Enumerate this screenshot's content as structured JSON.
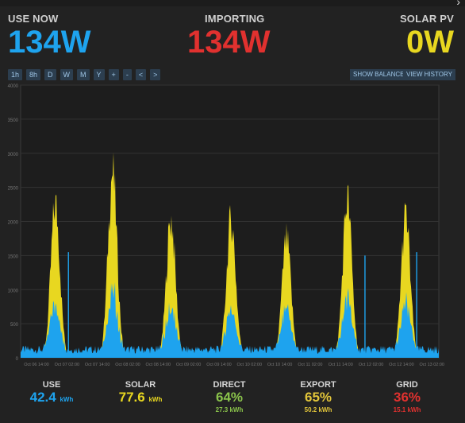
{
  "header": {
    "use_now": {
      "label": "USE NOW",
      "value": "134W"
    },
    "importing": {
      "label": "IMPORTING",
      "value": "134W"
    },
    "solar_pv": {
      "label": "SOLAR PV",
      "value": "0W"
    }
  },
  "corner_icon": "chevron-right-icon",
  "toolbar": {
    "buttons": [
      "1h",
      "8h",
      "D",
      "W",
      "M",
      "Y",
      "+",
      "-",
      "<",
      ">"
    ],
    "show_balance": "SHOW BALANCE",
    "view_history": "VIEW HISTORY"
  },
  "colors": {
    "use": "#1ea3ee",
    "solar": "#e8d720",
    "importing": "#e1312f",
    "direct": "#8ac34b",
    "export": "#e3c63a",
    "background": "#222222"
  },
  "chart_data": {
    "type": "area",
    "ylim": [
      0,
      4000
    ],
    "yticks": [
      "0",
      "500",
      "1000",
      "1500",
      "2000",
      "2500",
      "3000",
      "3500",
      "4000"
    ],
    "xticks": [
      "Oct 06 14:00",
      "Oct 07 02:00",
      "Oct 07 14:00",
      "Oct 08 02:00",
      "Oct 08 14:00",
      "Oct 09 02:00",
      "Oct 09 14:00",
      "Oct 10 02:00",
      "Oct 10 14:00",
      "Oct 11 02:00",
      "Oct 11 14:00",
      "Oct 12 02:00",
      "Oct 12 14:00",
      "Oct 13 02:00"
    ],
    "grid": true,
    "series": [
      {
        "color": "#e8d720",
        "peaks": [
          {
            "center": 0.62,
            "value": 2600
          },
          {
            "center": 2.5,
            "value": 3150
          },
          {
            "center": 4.42,
            "value": 2350
          },
          {
            "center": 6.4,
            "value": 2350
          },
          {
            "center": 8.22,
            "value": 2000
          },
          {
            "center": 10.22,
            "value": 2700
          },
          {
            "center": 12.14,
            "value": 2400
          }
        ]
      },
      {
        "color": "#1ea3ee",
        "spikes": [
          {
            "x": 1.05,
            "value": 1550
          },
          {
            "x": 10.8,
            "value": 1500
          },
          {
            "x": 12.5,
            "value": 1550
          }
        ]
      }
    ]
  },
  "footer": {
    "use": {
      "label": "USE",
      "value": "42.4",
      "unit": "kWh"
    },
    "solar": {
      "label": "SOLAR",
      "value": "77.6",
      "unit": "kWh"
    },
    "direct": {
      "label": "DIRECT",
      "value": "64%",
      "sub": "27.3 kWh"
    },
    "export": {
      "label": "EXPORT",
      "value": "65%",
      "sub": "50.2 kWh"
    },
    "grid": {
      "label": "GRID",
      "value": "36%",
      "sub": "15.1 kWh"
    }
  }
}
